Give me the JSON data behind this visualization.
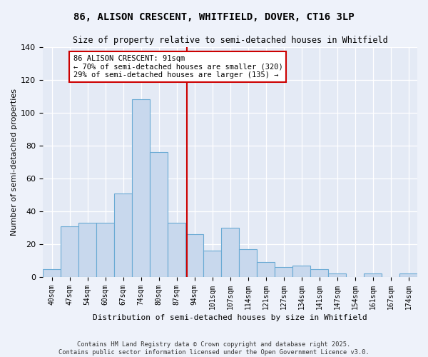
{
  "title_line1": "86, ALISON CRESCENT, WHITFIELD, DOVER, CT16 3LP",
  "title_line2": "Size of property relative to semi-detached houses in Whitfield",
  "xlabel": "Distribution of semi-detached houses by size in Whitfield",
  "ylabel": "Number of semi-detached properties",
  "bar_labels": [
    "40sqm",
    "47sqm",
    "54sqm",
    "60sqm",
    "67sqm",
    "74sqm",
    "80sqm",
    "87sqm",
    "94sqm",
    "101sqm",
    "107sqm",
    "114sqm",
    "121sqm",
    "127sqm",
    "134sqm",
    "141sqm",
    "147sqm",
    "154sqm",
    "161sqm",
    "167sqm",
    "174sqm"
  ],
  "bar_values": [
    5,
    31,
    33,
    33,
    51,
    108,
    76,
    33,
    26,
    16,
    30,
    17,
    9,
    6,
    7,
    5,
    2,
    0,
    2,
    0,
    2
  ],
  "bar_color": "#c8d8ed",
  "bar_edge_color": "#6aaad4",
  "vline_x_bar_idx": 7.57,
  "vline_color": "#cc0000",
  "annotation_title": "86 ALISON CRESCENT: 91sqm",
  "annotation_line1": "← 70% of semi-detached houses are smaller (320)",
  "annotation_line2": "29% of semi-detached houses are larger (135) →",
  "annotation_box_edge": "#cc0000",
  "ylim": [
    0,
    140
  ],
  "yticks": [
    0,
    20,
    40,
    60,
    80,
    100,
    120,
    140
  ],
  "footer_line1": "Contains HM Land Registry data © Crown copyright and database right 2025.",
  "footer_line2": "Contains public sector information licensed under the Open Government Licence v3.0.",
  "bg_color": "#eef2fa",
  "plot_bg_color": "#e4eaf5"
}
